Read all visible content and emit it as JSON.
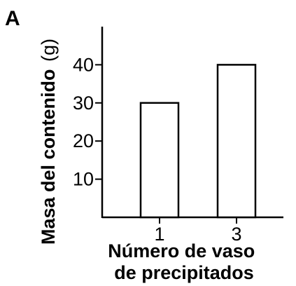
{
  "panel_label": "A",
  "chart_data": {
    "type": "bar",
    "categories": [
      "1",
      "3"
    ],
    "values": [
      30,
      40
    ],
    "title": "",
    "xlabel": [
      "Número de vaso",
      "de precipitados"
    ],
    "ylabel": "Masa del contenido",
    "ylabel_unit": "(g)",
    "ylim": [
      0,
      50
    ],
    "yticks": [
      10,
      20,
      30,
      40
    ],
    "grid": false,
    "bar_fill": "#ffffff",
    "bar_stroke": "#000000"
  }
}
